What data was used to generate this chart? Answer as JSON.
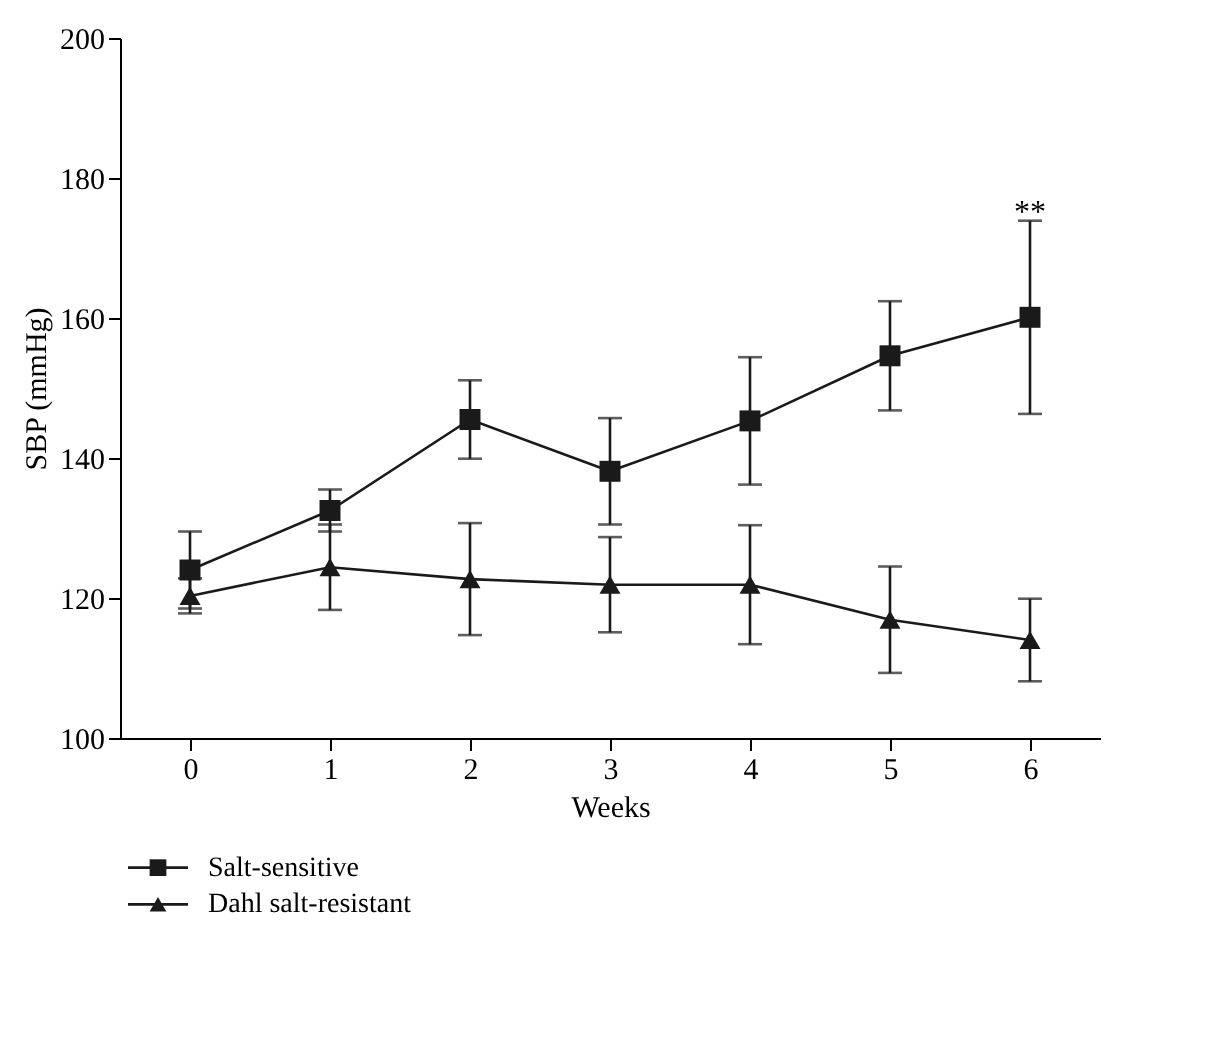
{
  "chart_data": {
    "type": "line",
    "xlabel": "Weeks",
    "ylabel": "SBP (mmHg)",
    "x": [
      0,
      1,
      2,
      3,
      4,
      5,
      6
    ],
    "series": [
      {
        "name": "Salt-sensitive",
        "color": "#1a1a1a",
        "marker": "square",
        "values": [
          124.0,
          132.5,
          145.5,
          138.1,
          145.3,
          154.6,
          160.1
        ],
        "errors": [
          5.5,
          3,
          5.6,
          7.6,
          9.1,
          7.8,
          13.8
        ]
      },
      {
        "name": "Dahl salt-resistant",
        "color": "#1a1a1a",
        "marker": "triangle",
        "values": [
          120.3,
          124.4,
          122.7,
          121.9,
          121.9,
          116.9,
          114.0
        ],
        "errors": [
          2.5,
          6.1,
          8,
          6.8,
          8.5,
          7.6,
          5.9
        ]
      }
    ],
    "xlim": [
      -0.5,
      6.5
    ],
    "xticks": [
      0,
      1,
      2,
      3,
      4,
      5,
      6
    ],
    "ylim": [
      100,
      200
    ],
    "yticks": [
      100,
      120,
      140,
      160,
      180,
      200
    ],
    "annotations": [
      "**"
    ],
    "grid": false,
    "legend": "bottom left",
    "line_style": "solid"
  }
}
